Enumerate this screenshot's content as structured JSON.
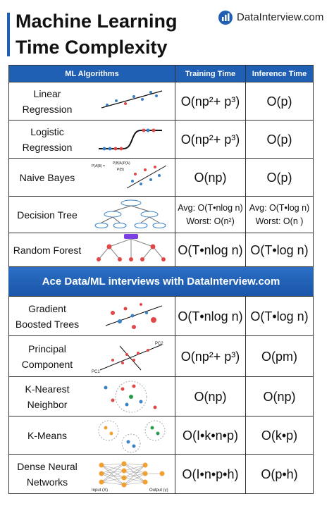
{
  "header": {
    "title_lines": [
      "Machine Learning",
      "Time Complexity"
    ],
    "brand": "DataInterview.com"
  },
  "table": {
    "columns": [
      "ML Algorithms",
      "Training Time",
      "Inference Time"
    ],
    "banner": "Ace Data/ML interviews with DataInterview.com",
    "rows": [
      {
        "name": [
          "Linear",
          "Regression"
        ],
        "training": [
          "O(np²+ p³)"
        ],
        "inference": [
          "O(p)"
        ]
      },
      {
        "name": [
          "Logistic",
          "Regression"
        ],
        "training": [
          "O(np²+ p³)"
        ],
        "inference": [
          "O(p)"
        ]
      },
      {
        "name": [
          "Naive Bayes"
        ],
        "training": [
          "O(np)"
        ],
        "inference": [
          "O(p)"
        ],
        "icon_text": [
          "P(A|B) =",
          "P(B|A)P(A)",
          "P(B)"
        ]
      },
      {
        "name": [
          "Decision Tree"
        ],
        "training": [
          "Avg: O(T•nlog n)",
          "Worst: O(n²)"
        ],
        "inference": [
          "Avg: O(T•log n)",
          "Worst: O(n )"
        ]
      },
      {
        "name": [
          "Random Forest"
        ],
        "training": [
          "O(T•nlog n)"
        ],
        "inference": [
          "O(T•log n)"
        ]
      },
      {
        "name": [
          "Gradient",
          "Boosted Trees"
        ],
        "training": [
          "O(T•nlog n)"
        ],
        "inference": [
          "O(T•log n)"
        ]
      },
      {
        "name": [
          "Principal",
          "Component"
        ],
        "training": [
          "O(np²+ p³)"
        ],
        "inference": [
          "O(pm)"
        ],
        "icon_text": [
          "PC1",
          "PC2"
        ]
      },
      {
        "name": [
          "K-Nearest",
          "Neighbor"
        ],
        "training": [
          "O(np)"
        ],
        "inference": [
          "O(np)"
        ]
      },
      {
        "name": [
          "K-Means"
        ],
        "training": [
          "O(I•k•n•p)"
        ],
        "inference": [
          "O(k•p)"
        ]
      },
      {
        "name": [
          "Dense Neural",
          "Networks"
        ],
        "training": [
          "O(I•n•p•h)"
        ],
        "inference": [
          "O(p•h)"
        ],
        "icon_text": [
          "Input (X)",
          "Output (y)"
        ]
      }
    ]
  }
}
